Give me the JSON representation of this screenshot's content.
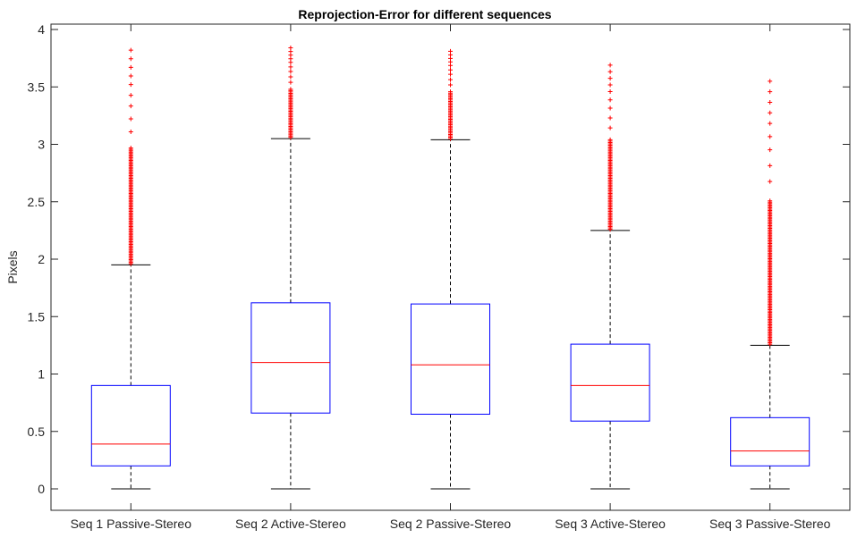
{
  "chart_data": {
    "type": "box",
    "title": "Reprojection-Error for different sequences",
    "xlabel": "",
    "ylabel": "Pixels",
    "ylim": [
      -0.2,
      4.05
    ],
    "yticks": [
      0,
      0.5,
      1,
      1.5,
      2,
      2.5,
      3,
      3.5,
      4
    ],
    "ytick_labels": [
      "0",
      "0.5",
      "1",
      "1.5",
      "2",
      "2.5",
      "3",
      "3.5",
      "4"
    ],
    "grid": false,
    "categories": [
      "Seq 1 Passive-Stereo",
      "Seq 2 Active-Stereo",
      "Seq 2 Passive-Stereo",
      "Seq 3 Active-Stereo",
      "Seq 3 Passive-Stereo"
    ],
    "boxes": [
      {
        "min": 0,
        "q1": 0.2,
        "median": 0.39,
        "q3": 0.9,
        "max": 1.95,
        "outlier_max": 3.82
      },
      {
        "min": 0,
        "q1": 0.66,
        "median": 1.1,
        "q3": 1.62,
        "max": 3.05,
        "outlier_max": 3.84
      },
      {
        "min": 0,
        "q1": 0.65,
        "median": 1.08,
        "q3": 1.61,
        "max": 3.04,
        "outlier_max": 3.81
      },
      {
        "min": 0,
        "q1": 0.59,
        "median": 0.9,
        "q3": 1.26,
        "max": 2.25,
        "outlier_max": 3.69
      },
      {
        "min": 0,
        "q1": 0.2,
        "median": 0.33,
        "q3": 0.62,
        "max": 1.25,
        "outlier_max": 3.55
      }
    ],
    "colors": {
      "box": "#0000ff",
      "median": "#ff0000",
      "whisker": "#000000",
      "outlier": "#ff0000",
      "axis": "#262626"
    }
  }
}
